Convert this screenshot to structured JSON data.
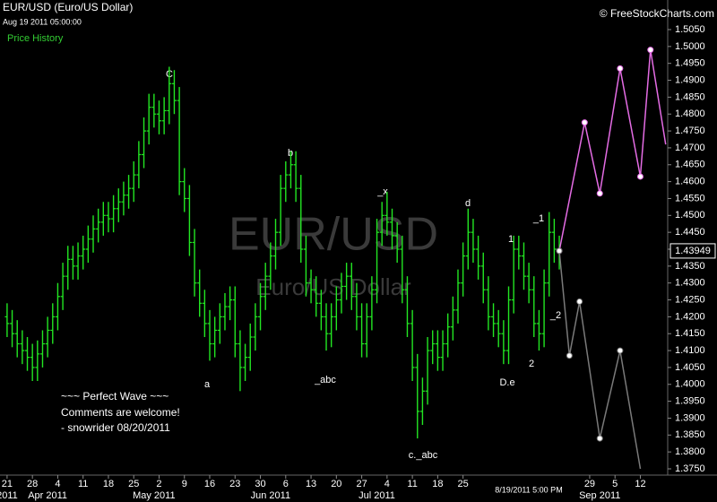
{
  "header": {
    "title": "EUR/USD (Euro/US Dollar)",
    "timestamp": "Aug 19 2011 05:00:00",
    "panel": "Price History",
    "copyright": "© FreeStockCharts.com",
    "watermark": "EUR/USD",
    "watermark_sub": "Euro/US Dollar"
  },
  "chart_data": {
    "type": "ohlc",
    "color": "#22e622",
    "xlim": [
      -1.4,
      130.4
    ],
    "ylim": [
      1.375,
      1.505
    ],
    "yticks": [
      {
        "value": 1.375,
        "label": "1.3750"
      },
      {
        "value": 1.38,
        "label": "1.3800"
      },
      {
        "value": 1.385,
        "label": "1.3850"
      },
      {
        "value": 1.39,
        "label": "1.3900"
      },
      {
        "value": 1.395,
        "label": "1.3950"
      },
      {
        "value": 1.4,
        "label": "1.4000"
      },
      {
        "value": 1.405,
        "label": "1.4050"
      },
      {
        "value": 1.41,
        "label": "1.4100"
      },
      {
        "value": 1.415,
        "label": "1.4150"
      },
      {
        "value": 1.42,
        "label": "1.4200"
      },
      {
        "value": 1.425,
        "label": "1.4250"
      },
      {
        "value": 1.43,
        "label": "1.4300"
      },
      {
        "value": 1.435,
        "label": "1.4350"
      },
      {
        "value": 1.44,
        "label": "1.4400"
      },
      {
        "value": 1.445,
        "label": "1.4450"
      },
      {
        "value": 1.45,
        "label": "1.4500"
      },
      {
        "value": 1.455,
        "label": "1.4550"
      },
      {
        "value": 1.46,
        "label": "1.4600"
      },
      {
        "value": 1.465,
        "label": "1.4650"
      },
      {
        "value": 1.47,
        "label": "1.4700"
      },
      {
        "value": 1.475,
        "label": "1.4750"
      },
      {
        "value": 1.48,
        "label": "1.4800"
      },
      {
        "value": 1.485,
        "label": "1.4850"
      },
      {
        "value": 1.49,
        "label": "1.4900"
      },
      {
        "value": 1.495,
        "label": "1.4950"
      },
      {
        "value": 1.5,
        "label": "1.5000"
      },
      {
        "value": 1.505,
        "label": "1.5050"
      }
    ],
    "xticks": [
      {
        "value": 0,
        "label": "21"
      },
      {
        "value": 5,
        "label": "28"
      },
      {
        "value": 10,
        "label": "4"
      },
      {
        "value": 15,
        "label": "11"
      },
      {
        "value": 20,
        "label": "18"
      },
      {
        "value": 25,
        "label": "25"
      },
      {
        "value": 30,
        "label": "2"
      },
      {
        "value": 35,
        "label": "9"
      },
      {
        "value": 40,
        "label": "16"
      },
      {
        "value": 45,
        "label": "23"
      },
      {
        "value": 50,
        "label": "30"
      },
      {
        "value": 55,
        "label": "6"
      },
      {
        "value": 60,
        "label": "13"
      },
      {
        "value": 65,
        "label": "20"
      },
      {
        "value": 70,
        "label": "27"
      },
      {
        "value": 75,
        "label": "4"
      },
      {
        "value": 80,
        "label": "11"
      },
      {
        "value": 85,
        "label": "18"
      },
      {
        "value": 90,
        "label": "25"
      },
      {
        "value": 115,
        "label": "29"
      },
      {
        "value": 120,
        "label": "5"
      },
      {
        "value": 125,
        "label": "12"
      }
    ],
    "month_ticks": [
      {
        "value": 0,
        "label": "2011"
      },
      {
        "value": 8,
        "label": "Apr 2011"
      },
      {
        "value": 29,
        "label": "May 2011"
      },
      {
        "value": 52,
        "label": "Jun 2011"
      },
      {
        "value": 73,
        "label": "Jul 2011"
      },
      {
        "value": 117,
        "label": "Sep 2011"
      }
    ],
    "cursor_label": "8/19/2011 5:00 PM",
    "last_price": 1.43949,
    "open": [
      1.42,
      1.418,
      1.415,
      1.412,
      1.41,
      1.408,
      1.405,
      1.409,
      1.412,
      1.416,
      1.42,
      1.426,
      1.432,
      1.437,
      1.435,
      1.438,
      1.44,
      1.443,
      1.446,
      1.448,
      1.45,
      1.449,
      1.452,
      1.454,
      1.456,
      1.458,
      1.462,
      1.468,
      1.475,
      1.482,
      1.48,
      1.478,
      1.481,
      1.489,
      1.484,
      1.46,
      1.455,
      1.442,
      1.43,
      1.424,
      1.418,
      1.412,
      1.416,
      1.42,
      1.423,
      1.425,
      1.412,
      1.405,
      1.408,
      1.414,
      1.42,
      1.426,
      1.432,
      1.438,
      1.445,
      1.458,
      1.462,
      1.465,
      1.458,
      1.44,
      1.43,
      1.428,
      1.424,
      1.42,
      1.415,
      1.42,
      1.425,
      1.429,
      1.432,
      1.426,
      1.42,
      1.412,
      1.42,
      1.428,
      1.445,
      1.45,
      1.448,
      1.444,
      1.44,
      1.428,
      1.418,
      1.405,
      1.392,
      1.398,
      1.41,
      1.412,
      1.408,
      1.412,
      1.417,
      1.422,
      1.43,
      1.438,
      1.445,
      1.44,
      1.435,
      1.428,
      1.42,
      1.418,
      1.415,
      1.41,
      1.425,
      1.44,
      1.438,
      1.432,
      1.428,
      1.418,
      1.415,
      1.43,
      1.445,
      1.44
    ],
    "high": [
      1.424,
      1.422,
      1.419,
      1.416,
      1.414,
      1.412,
      1.413,
      1.416,
      1.42,
      1.424,
      1.43,
      1.436,
      1.441,
      1.441,
      1.442,
      1.444,
      1.447,
      1.45,
      1.452,
      1.454,
      1.454,
      1.456,
      1.458,
      1.46,
      1.462,
      1.466,
      1.472,
      1.479,
      1.486,
      1.486,
      1.484,
      1.485,
      1.494,
      1.493,
      1.488,
      1.464,
      1.459,
      1.446,
      1.434,
      1.428,
      1.422,
      1.42,
      1.424,
      1.427,
      1.429,
      1.429,
      1.416,
      1.412,
      1.418,
      1.424,
      1.43,
      1.436,
      1.442,
      1.449,
      1.462,
      1.466,
      1.469,
      1.469,
      1.462,
      1.444,
      1.434,
      1.432,
      1.428,
      1.424,
      1.424,
      1.429,
      1.433,
      1.436,
      1.436,
      1.43,
      1.424,
      1.424,
      1.432,
      1.449,
      1.454,
      1.457,
      1.452,
      1.448,
      1.444,
      1.432,
      1.422,
      1.409,
      1.402,
      1.414,
      1.416,
      1.416,
      1.416,
      1.421,
      1.426,
      1.434,
      1.442,
      1.452,
      1.449,
      1.444,
      1.439,
      1.432,
      1.424,
      1.422,
      1.419,
      1.429,
      1.444,
      1.444,
      1.442,
      1.436,
      1.432,
      1.422,
      1.434,
      1.451,
      1.449,
      1.444
    ],
    "low": [
      1.414,
      1.411,
      1.408,
      1.406,
      1.404,
      1.401,
      1.401,
      1.405,
      1.408,
      1.412,
      1.416,
      1.422,
      1.428,
      1.431,
      1.431,
      1.434,
      1.436,
      1.439,
      1.442,
      1.444,
      1.445,
      1.445,
      1.448,
      1.45,
      1.452,
      1.454,
      1.458,
      1.464,
      1.471,
      1.476,
      1.474,
      1.474,
      1.477,
      1.48,
      1.456,
      1.451,
      1.438,
      1.426,
      1.42,
      1.414,
      1.407,
      1.408,
      1.412,
      1.416,
      1.419,
      1.408,
      1.398,
      1.401,
      1.404,
      1.41,
      1.416,
      1.422,
      1.428,
      1.434,
      1.441,
      1.454,
      1.458,
      1.454,
      1.436,
      1.426,
      1.424,
      1.42,
      1.416,
      1.41,
      1.411,
      1.416,
      1.421,
      1.425,
      1.422,
      1.416,
      1.408,
      1.408,
      1.416,
      1.424,
      1.441,
      1.444,
      1.44,
      1.436,
      1.424,
      1.414,
      1.401,
      1.384,
      1.388,
      1.394,
      1.406,
      1.404,
      1.404,
      1.408,
      1.413,
      1.418,
      1.426,
      1.434,
      1.436,
      1.431,
      1.424,
      1.416,
      1.414,
      1.411,
      1.406,
      1.406,
      1.421,
      1.434,
      1.428,
      1.424,
      1.414,
      1.41,
      1.411,
      1.426,
      1.436,
      1.434
    ],
    "close": [
      1.418,
      1.415,
      1.412,
      1.41,
      1.408,
      1.405,
      1.409,
      1.412,
      1.416,
      1.42,
      1.426,
      1.432,
      1.437,
      1.435,
      1.438,
      1.44,
      1.443,
      1.446,
      1.448,
      1.45,
      1.449,
      1.452,
      1.454,
      1.456,
      1.458,
      1.462,
      1.468,
      1.475,
      1.482,
      1.48,
      1.478,
      1.481,
      1.489,
      1.484,
      1.46,
      1.455,
      1.442,
      1.43,
      1.424,
      1.418,
      1.412,
      1.416,
      1.42,
      1.423,
      1.425,
      1.412,
      1.405,
      1.408,
      1.414,
      1.42,
      1.426,
      1.432,
      1.438,
      1.445,
      1.458,
      1.462,
      1.465,
      1.458,
      1.44,
      1.43,
      1.428,
      1.424,
      1.42,
      1.415,
      1.42,
      1.425,
      1.429,
      1.432,
      1.426,
      1.42,
      1.412,
      1.42,
      1.428,
      1.445,
      1.45,
      1.448,
      1.444,
      1.44,
      1.428,
      1.418,
      1.405,
      1.392,
      1.398,
      1.41,
      1.412,
      1.408,
      1.412,
      1.417,
      1.422,
      1.43,
      1.438,
      1.445,
      1.44,
      1.435,
      1.428,
      1.42,
      1.418,
      1.415,
      1.41,
      1.425,
      1.44,
      1.438,
      1.432,
      1.428,
      1.418,
      1.415,
      1.43,
      1.445,
      1.44,
      1.4395
    ],
    "projections": [
      {
        "color": "#e46ce4",
        "x": [
          109,
          114,
          117,
          121,
          125,
          127,
          130
        ],
        "values": [
          1.4395,
          1.4775,
          1.4565,
          1.4935,
          1.4615,
          1.499,
          1.471
        ]
      },
      {
        "color": "#7a7a7a",
        "x": [
          109,
          111,
          113,
          117,
          121,
          125
        ],
        "values": [
          1.4395,
          1.4085,
          1.4245,
          1.384,
          1.41,
          1.375
        ]
      }
    ],
    "annotations": [
      "C",
      "b",
      "_x",
      "d",
      "1",
      "_1",
      "_2",
      "2",
      "D.e",
      "a",
      "_abc",
      "c._abc"
    ],
    "comment": [
      "~~~ Perfect Wave ~~~",
      "Comments are welcome!",
      "- snowrider  08/20/2011"
    ]
  }
}
